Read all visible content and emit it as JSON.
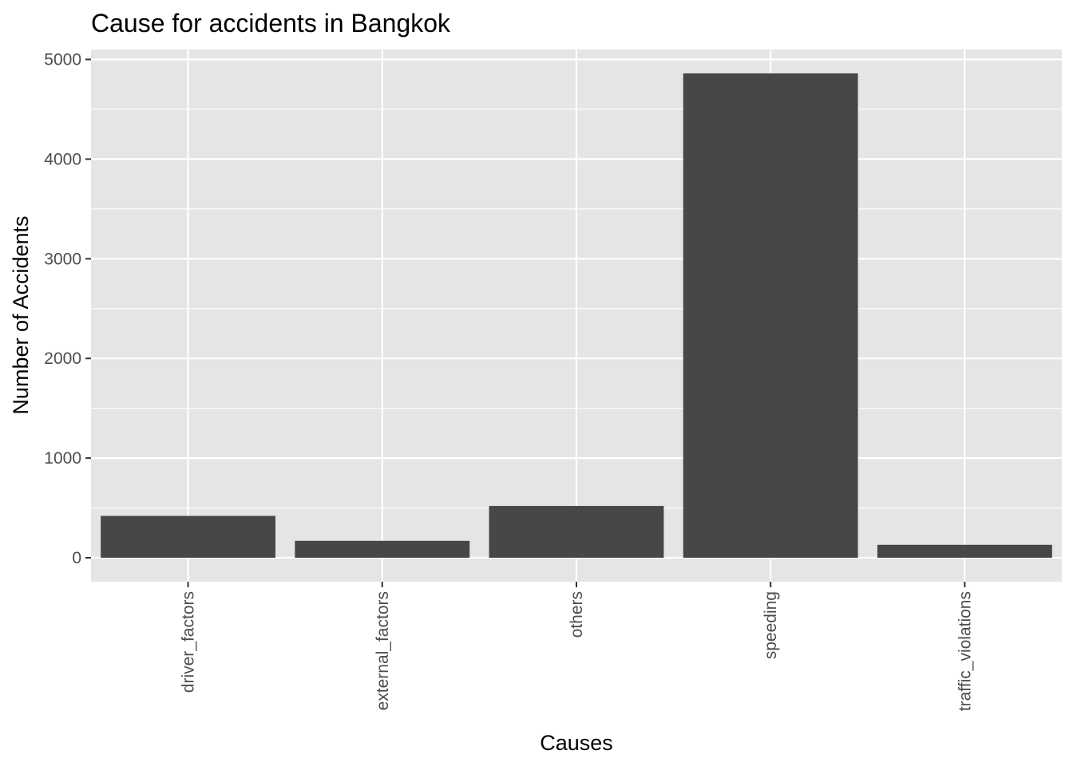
{
  "chart_data": {
    "type": "bar",
    "title": "Cause for accidents in Bangkok",
    "xlabel": "Causes",
    "ylabel": "Number of Accidents",
    "categories": [
      "driver_factors",
      "external_factors",
      "others",
      "speeding",
      "traffic_violations"
    ],
    "values": [
      420,
      170,
      520,
      4860,
      130
    ],
    "ylim": [
      -240,
      5100
    ],
    "yticks": [
      0,
      1000,
      2000,
      3000,
      4000,
      5000
    ],
    "ytick_labels": [
      "0",
      "1000",
      "2000",
      "3000",
      "4000",
      "5000"
    ],
    "grid": true,
    "legend": "none",
    "colors": {
      "bar": "#474747",
      "panel": "#e5e5e5",
      "grid": "#ffffff",
      "text": "#000000",
      "tick_text": "#4d4d4d",
      "tick_mark": "#333333"
    }
  }
}
